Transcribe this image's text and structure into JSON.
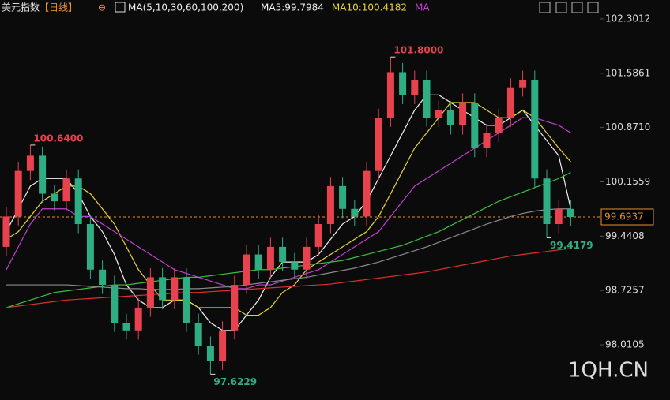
{
  "chart_data": {
    "type": "candlestick",
    "title": "美元指数",
    "period": "【日线】",
    "indicator": "MA(5,10,30,60,100,200)",
    "watermark": "1QH.CN",
    "up_color": "#e8424f",
    "down_color": "#2fae84",
    "open": [
      99.3,
      99.7,
      100.3,
      100.5,
      100.0,
      99.9,
      100.2,
      99.6,
      99.0,
      98.8,
      98.3,
      98.2,
      98.5,
      98.9,
      98.6,
      98.9,
      98.3,
      98.0,
      97.8,
      98.2,
      98.8,
      99.2,
      99.0,
      99.3,
      99.1,
      99.0,
      99.3,
      99.6,
      100.1,
      99.8,
      99.7,
      100.3,
      101.0,
      101.6,
      101.3,
      101.5,
      101.0,
      101.1,
      100.9,
      101.2,
      100.6,
      100.8,
      101.0,
      101.4,
      101.5,
      100.2,
      99.6,
      99.8
    ],
    "high": [
      99.82,
      100.42,
      100.64,
      100.62,
      100.12,
      100.32,
      100.32,
      99.72,
      99.12,
      98.92,
      98.42,
      98.62,
      99.02,
      99.02,
      99.02,
      99.02,
      98.42,
      98.12,
      98.32,
      98.92,
      99.32,
      99.32,
      99.42,
      99.42,
      99.22,
      99.42,
      99.72,
      100.22,
      100.22,
      99.92,
      100.42,
      101.12,
      101.8,
      101.72,
      101.62,
      101.62,
      101.22,
      101.22,
      101.32,
      101.32,
      100.92,
      101.12,
      101.52,
      101.62,
      101.62,
      100.32,
      99.92,
      99.92
    ],
    "low": [
      99.18,
      99.58,
      100.18,
      99.88,
      99.78,
      99.78,
      99.48,
      98.88,
      98.68,
      98.18,
      98.08,
      98.08,
      98.38,
      98.48,
      98.48,
      98.18,
      97.88,
      97.6229,
      97.68,
      98.08,
      98.68,
      98.88,
      98.88,
      98.98,
      98.88,
      98.88,
      99.18,
      99.48,
      99.68,
      99.58,
      99.58,
      100.18,
      100.88,
      101.18,
      101.18,
      100.88,
      100.88,
      100.78,
      100.78,
      100.48,
      100.48,
      100.68,
      100.88,
      101.28,
      100.08,
      99.4179,
      99.48,
      99.57
    ],
    "close": [
      99.7,
      100.3,
      100.5,
      100.0,
      99.9,
      100.2,
      99.6,
      99.0,
      98.8,
      98.3,
      98.2,
      98.5,
      98.9,
      98.6,
      98.9,
      98.3,
      98.0,
      97.8,
      98.2,
      98.8,
      99.2,
      99.0,
      99.3,
      99.1,
      99.0,
      99.3,
      99.6,
      100.1,
      99.8,
      99.7,
      100.3,
      101.0,
      101.6,
      101.3,
      101.5,
      101.0,
      101.1,
      100.9,
      101.2,
      100.6,
      100.8,
      101.0,
      101.4,
      101.5,
      100.2,
      99.6,
      99.8,
      99.6937
    ],
    "series": [
      {
        "name": "MA5:99.7984",
        "color": "#f2f2f2",
        "values": [
          99.5,
          99.8,
          100.1,
          100.2,
          100.2,
          100.2,
          100.0,
          99.7,
          99.5,
          99.2,
          98.8,
          98.6,
          98.5,
          98.5,
          98.6,
          98.6,
          98.5,
          98.3,
          98.2,
          98.2,
          98.4,
          98.6,
          98.9,
          99.1,
          99.1,
          99.1,
          99.2,
          99.4,
          99.6,
          99.7,
          99.9,
          100.2,
          100.5,
          100.8,
          101.1,
          101.3,
          101.3,
          101.2,
          101.1,
          101.0,
          100.9,
          100.9,
          101.0,
          101.1,
          100.9,
          100.7,
          100.5,
          99.8
        ]
      },
      {
        "name": "MA10:100.4182",
        "color": "#e8d23a",
        "values": [
          99.4,
          99.5,
          99.7,
          99.9,
          100.0,
          100.1,
          100.1,
          100.0,
          99.8,
          99.6,
          99.3,
          99.0,
          98.8,
          98.6,
          98.6,
          98.6,
          98.5,
          98.5,
          98.5,
          98.5,
          98.4,
          98.4,
          98.5,
          98.7,
          98.8,
          99.0,
          99.1,
          99.2,
          99.3,
          99.4,
          99.5,
          99.7,
          100.0,
          100.3,
          100.6,
          100.8,
          101.0,
          101.2,
          101.2,
          101.2,
          101.1,
          101.0,
          101.0,
          101.1,
          101.0,
          100.8,
          100.6,
          100.42
        ]
      },
      {
        "name": "MA",
        "color": "#c13fd0",
        "values": [
          99.0,
          99.3,
          99.6,
          99.8,
          99.8,
          99.8,
          99.7,
          99.7,
          99.6,
          99.5,
          99.4,
          99.3,
          99.2,
          99.1,
          99.0,
          98.95,
          98.9,
          98.85,
          98.8,
          98.75,
          98.75,
          98.8,
          98.8,
          98.85,
          98.9,
          98.95,
          99.0,
          99.1,
          99.2,
          99.3,
          99.4,
          99.5,
          99.7,
          99.9,
          100.1,
          100.2,
          100.3,
          100.4,
          100.5,
          100.6,
          100.7,
          100.8,
          100.9,
          101.0,
          101.0,
          100.95,
          100.9,
          100.8
        ]
      },
      {
        "color": "#3fbf3f",
        "values": [
          98.5,
          98.55,
          98.6,
          98.65,
          98.7,
          98.72,
          98.74,
          98.76,
          98.78,
          98.8,
          98.8,
          98.82,
          98.84,
          98.86,
          98.88,
          98.9,
          98.9,
          98.92,
          98.94,
          98.96,
          98.98,
          99.0,
          99.0,
          99.02,
          99.04,
          99.06,
          99.08,
          99.1,
          99.12,
          99.16,
          99.2,
          99.24,
          99.28,
          99.32,
          99.38,
          99.44,
          99.5,
          99.58,
          99.66,
          99.74,
          99.82,
          99.9,
          99.96,
          100.02,
          100.08,
          100.14,
          100.2,
          100.28
        ]
      },
      {
        "color": "#8a8a8a",
        "values": [
          98.8,
          98.8,
          98.8,
          98.8,
          98.8,
          98.8,
          98.79,
          98.78,
          98.77,
          98.76,
          98.75,
          98.75,
          98.74,
          98.74,
          98.74,
          98.75,
          98.75,
          98.76,
          98.77,
          98.78,
          98.8,
          98.82,
          98.84,
          98.86,
          98.88,
          98.9,
          98.93,
          98.96,
          98.99,
          99.02,
          99.06,
          99.1,
          99.15,
          99.2,
          99.25,
          99.3,
          99.36,
          99.42,
          99.48,
          99.54,
          99.6,
          99.65,
          99.7,
          99.74,
          99.77,
          99.79,
          99.8,
          99.8
        ]
      },
      {
        "color": "#d8322c",
        "values": [
          98.5,
          98.52,
          98.54,
          98.56,
          98.58,
          98.6,
          98.61,
          98.62,
          98.63,
          98.64,
          98.65,
          98.66,
          98.67,
          98.68,
          98.69,
          98.7,
          98.7,
          98.71,
          98.72,
          98.73,
          98.74,
          98.75,
          98.76,
          98.77,
          98.78,
          98.79,
          98.8,
          98.81,
          98.83,
          98.85,
          98.87,
          98.89,
          98.91,
          98.93,
          98.95,
          98.97,
          99.0,
          99.03,
          99.06,
          99.09,
          99.12,
          99.15,
          99.18,
          99.2,
          99.22,
          99.24,
          99.26,
          99.28
        ]
      }
    ],
    "extremes": [
      {
        "value": 101.8,
        "label": "101.8000"
      },
      {
        "value": 100.64,
        "label": "100.6400"
      },
      {
        "value": 97.6229,
        "label": "97.6229"
      },
      {
        "value": 99.4179,
        "label": "99.4179"
      }
    ],
    "last_price": 99.6937,
    "ylim": [
      97.284,
      102.55
    ],
    "yticks": [
      102.3012,
      101.5861,
      {
        "value": 100.871,
        "label": "100.8710"
      },
      100.1559,
      99.4408,
      98.7257,
      98.0105
    ]
  }
}
